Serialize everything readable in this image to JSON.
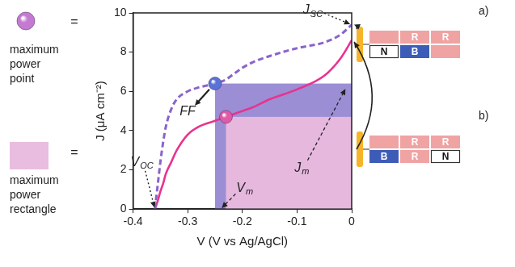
{
  "chart_data": {
    "type": "line",
    "x_label": "V (V vs Ag/AgCl)",
    "y_label": "J (μA cm⁻²)",
    "x": [
      -0.36,
      -0.355,
      -0.35,
      -0.345,
      -0.34,
      -0.33,
      -0.32,
      -0.3,
      -0.28,
      -0.25,
      -0.23,
      -0.22,
      -0.2,
      -0.18,
      -0.15,
      -0.1,
      -0.05,
      -0.02,
      0
    ],
    "series": [
      {
        "color": "#8a63cc",
        "line_style": "dashed",
        "values": [
          0,
          1.2,
          2.4,
          3.4,
          4.2,
          5.1,
          5.6,
          6.0,
          6.2,
          6.4,
          6.6,
          6.8,
          7.2,
          7.5,
          7.8,
          8.2,
          8.5,
          8.9,
          9.4
        ],
        "max_power_point": [
          -0.25,
          6.4
        ]
      },
      {
        "color": "#e8338f",
        "line_style": "solid",
        "values": [
          0,
          0.4,
          0.9,
          1.3,
          1.8,
          2.4,
          3.0,
          3.8,
          4.2,
          4.5,
          4.7,
          4.8,
          5.0,
          5.2,
          5.6,
          6.1,
          6.8,
          7.7,
          8.6
        ],
        "max_power_point": [
          -0.23,
          4.7
        ]
      }
    ],
    "xlim": [
      -0.4,
      0
    ],
    "xticks": [
      -0.4,
      -0.3,
      -0.2,
      -0.1,
      0
    ],
    "ylim": [
      0,
      10
    ],
    "yticks": [
      0,
      2,
      4,
      6,
      8,
      10
    ],
    "grid": false,
    "annotations": [
      {
        "text": "J",
        "sub": "SC",
        "target": [
          0,
          9.4
        ]
      },
      {
        "text": "FF",
        "target": [
          -0.25,
          6.4
        ]
      },
      {
        "text": "V",
        "sub": "OC",
        "target": [
          -0.36,
          0
        ]
      },
      {
        "text": "V",
        "sub": "m",
        "target": [
          -0.24,
          0
        ]
      },
      {
        "text": "J",
        "sub": "m",
        "target": [
          -0.01,
          6.2
        ]
      }
    ]
  },
  "key": [
    {
      "equals": "=",
      "lines": [
        "maximum",
        "power",
        "point"
      ]
    },
    {
      "equals": "=",
      "lines": [
        "maximum",
        "power",
        "rectangle"
      ]
    }
  ],
  "schematics": [
    {
      "label": "a)",
      "rows": [
        [
          {
            "label": null,
            "color": "#f0a3a3"
          },
          {
            "label": "R",
            "color": "#f0a3a3"
          },
          {
            "label": "R",
            "color": "#f0a3a3"
          }
        ],
        [
          {
            "label": "N",
            "color": "#ffffff"
          },
          {
            "label": "B",
            "color": "#3d5cb8"
          },
          {
            "label": null,
            "color": "#f0a3a3"
          }
        ]
      ]
    },
    {
      "label": "b)",
      "rows": [
        [
          {
            "label": null,
            "color": "#f0a3a3"
          },
          {
            "label": "R",
            "color": "#f0a3a3"
          },
          {
            "label": "R",
            "color": "#f0a3a3"
          }
        ],
        [
          {
            "label": "B",
            "color": "#3d5cb8"
          },
          {
            "label": "R",
            "color": "#f0a3a3"
          },
          {
            "label": "N",
            "color": "#ffffff"
          }
        ]
      ]
    }
  ]
}
